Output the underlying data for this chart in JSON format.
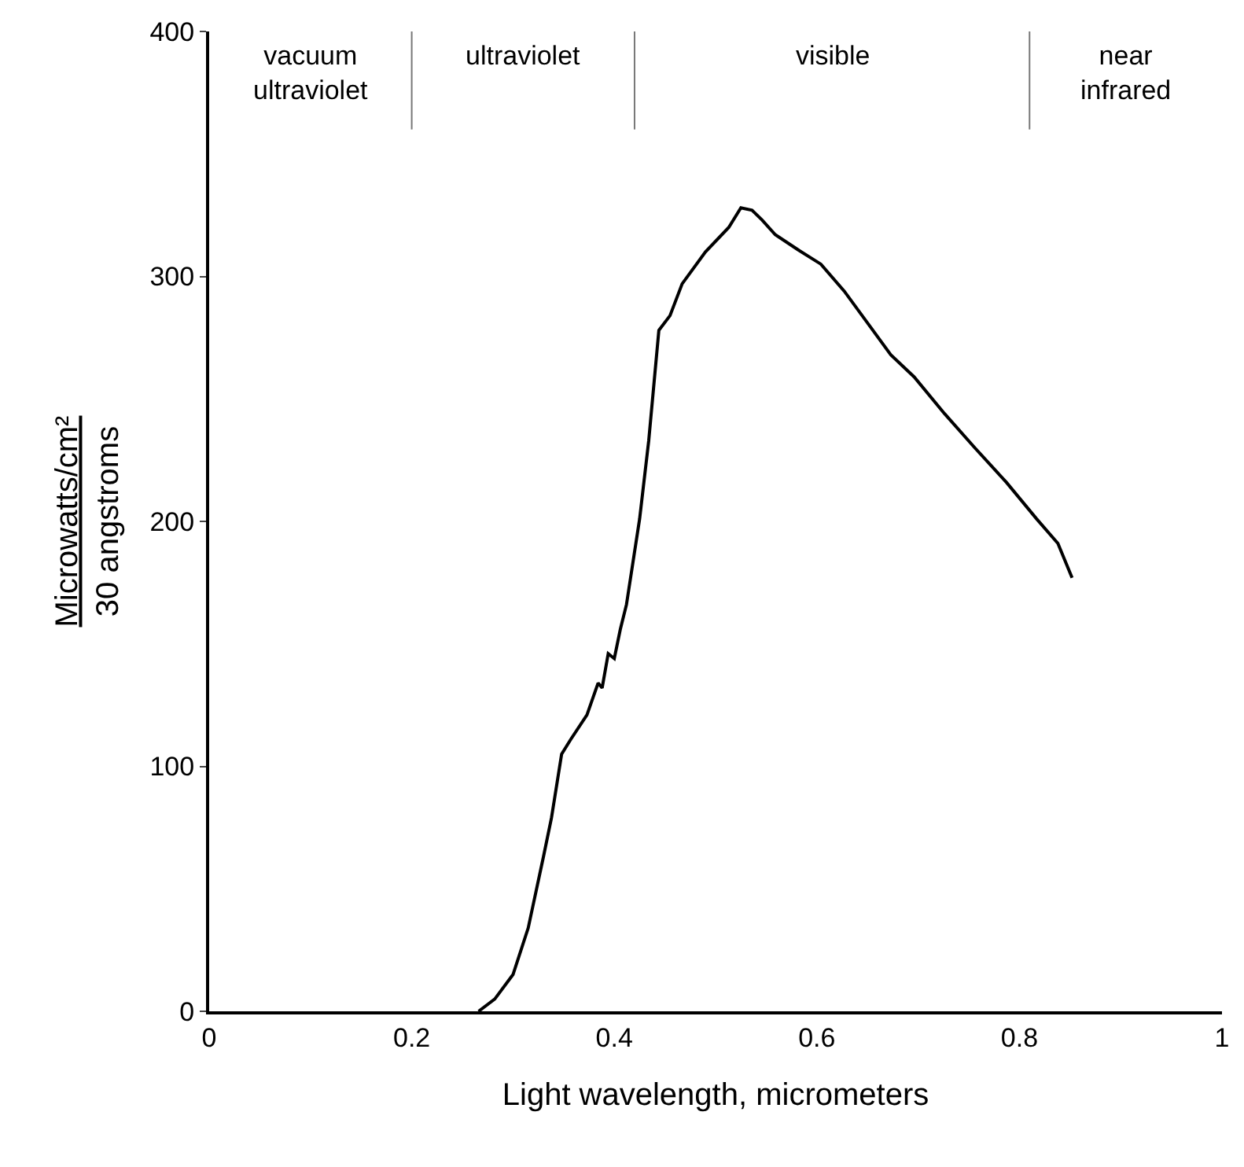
{
  "chart_data": {
    "type": "line",
    "xlabel": "Light wavelength, micrometers",
    "ylabel": "Microwatts/cm²\n30 angstroms",
    "x": [
      0.266,
      0.282,
      0.3,
      0.315,
      0.33,
      0.338,
      0.348,
      0.357,
      0.373,
      0.384,
      0.388,
      0.394,
      0.4,
      0.406,
      0.412,
      0.425,
      0.434,
      0.444,
      0.455,
      0.467,
      0.49,
      0.513,
      0.525,
      0.536,
      0.546,
      0.559,
      0.581,
      0.604,
      0.627,
      0.65,
      0.673,
      0.696,
      0.726,
      0.756,
      0.787,
      0.817,
      0.838,
      0.852
    ],
    "series": [
      {
        "color": "#000000",
        "values": [
          0,
          5,
          15,
          34,
          63,
          79,
          105,
          111,
          121,
          134,
          132,
          146,
          144,
          156,
          166,
          201,
          233,
          278,
          284,
          297,
          310,
          320,
          328,
          327,
          323,
          317,
          311,
          305,
          294,
          281,
          268,
          259,
          244,
          230,
          216,
          201,
          191,
          177
        ]
      }
    ],
    "xlim": [
      0,
      1
    ],
    "xticks": [
      0,
      0.2,
      0.4,
      0.6,
      0.8,
      1
    ],
    "ylim": [
      0,
      400
    ],
    "yticks": [
      0,
      100,
      200,
      300,
      400
    ],
    "ref_lines": [
      {
        "axis": "x",
        "value": 0.2,
        "color": "#777777"
      },
      {
        "axis": "x",
        "value": 0.42,
        "color": "#777777"
      },
      {
        "axis": "x",
        "value": 0.81,
        "color": "#777777"
      }
    ],
    "annotations": [
      "vacuum ultraviolet",
      "ultraviolet",
      "visible",
      "near infrared"
    ],
    "grid": false,
    "marker": "none",
    "line_style": "solid"
  }
}
